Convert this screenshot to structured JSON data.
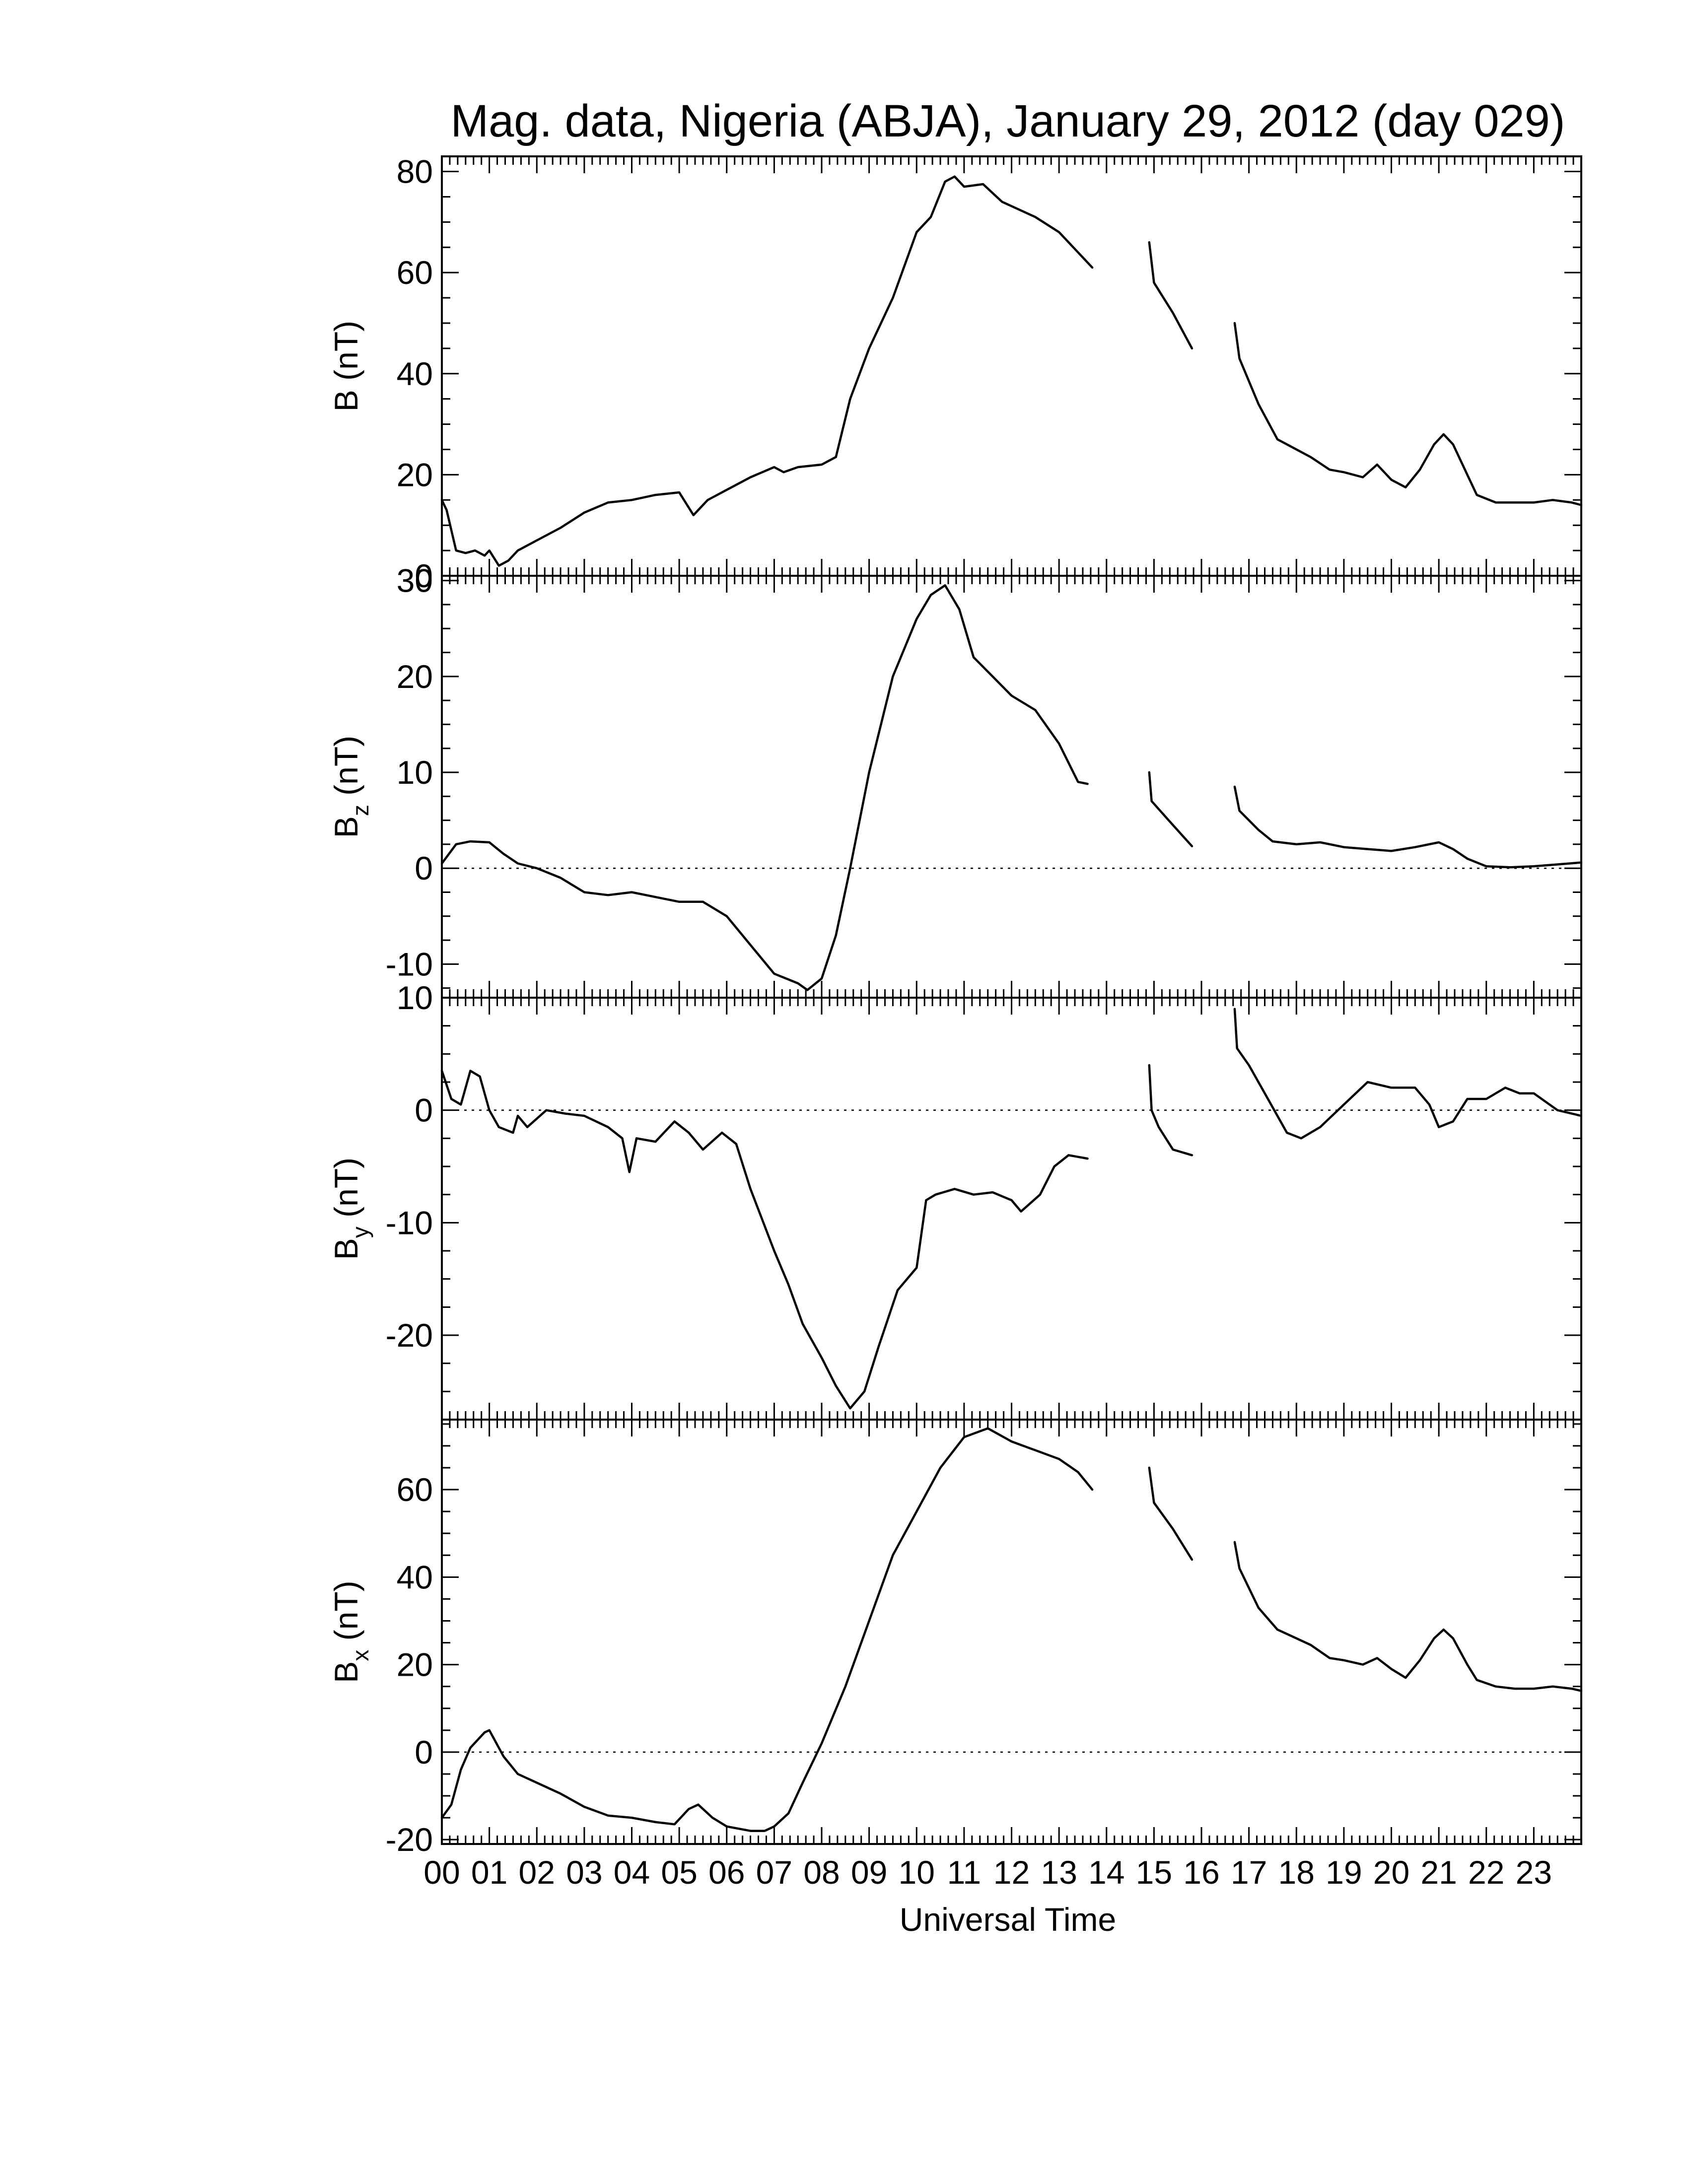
{
  "chart_data": {
    "type": "line",
    "title": "Mag. data, Nigeria (ABJA), January 29, 2012 (day 029)",
    "xlabel": "Universal Time",
    "x_tick_labels": [
      "00",
      "01",
      "02",
      "03",
      "04",
      "05",
      "06",
      "07",
      "08",
      "09",
      "10",
      "11",
      "12",
      "13",
      "14",
      "15",
      "16",
      "17",
      "18",
      "19",
      "20",
      "21",
      "22",
      "23"
    ],
    "xlim": [
      0,
      24
    ],
    "grid": false,
    "panels": [
      {
        "id": "B",
        "ylabel_main": "B",
        "ylabel_sub": "",
        "ylabel_unit": " (nT)",
        "ylim": [
          0,
          83
        ],
        "yticks": [
          0,
          20,
          40,
          60,
          80
        ],
        "ytick_labels": [
          "0",
          "20",
          "40",
          "60",
          "80"
        ],
        "zero_line": false,
        "segments": [
          [
            [
              0,
              15
            ],
            [
              0.1,
              13
            ],
            [
              0.3,
              5
            ],
            [
              0.5,
              4.5
            ],
            [
              0.7,
              5
            ],
            [
              0.9,
              4
            ],
            [
              1.0,
              5
            ],
            [
              1.2,
              2
            ],
            [
              1.4,
              3
            ],
            [
              1.6,
              5
            ],
            [
              2.0,
              7
            ],
            [
              2.5,
              9.5
            ],
            [
              3.0,
              12.5
            ],
            [
              3.5,
              14.5
            ],
            [
              4.0,
              15
            ],
            [
              4.5,
              16
            ],
            [
              5.0,
              16.5
            ],
            [
              5.3,
              12
            ],
            [
              5.6,
              15
            ],
            [
              6.0,
              17
            ],
            [
              6.5,
              19.5
            ],
            [
              7.0,
              21.5
            ],
            [
              7.2,
              20.5
            ],
            [
              7.5,
              21.5
            ],
            [
              8.0,
              22
            ],
            [
              8.3,
              23.5
            ],
            [
              8.6,
              35
            ],
            [
              9.0,
              45
            ],
            [
              9.5,
              55
            ],
            [
              10.0,
              68
            ],
            [
              10.3,
              71
            ],
            [
              10.6,
              78
            ],
            [
              10.8,
              79
            ],
            [
              11.0,
              77
            ],
            [
              11.4,
              77.5
            ],
            [
              11.8,
              74
            ],
            [
              12.5,
              71
            ],
            [
              13.0,
              68
            ],
            [
              13.4,
              64
            ],
            [
              13.7,
              61
            ]
          ],
          [
            [
              14.9,
              66
            ],
            [
              15.0,
              58
            ],
            [
              15.4,
              52
            ],
            [
              15.8,
              45
            ]
          ],
          [
            [
              16.7,
              50
            ],
            [
              16.8,
              43
            ],
            [
              17.2,
              34
            ],
            [
              17.6,
              27
            ],
            [
              18.0,
              25
            ],
            [
              18.3,
              23.5
            ],
            [
              18.7,
              21
            ],
            [
              19.0,
              20.5
            ],
            [
              19.4,
              19.5
            ],
            [
              19.7,
              22
            ],
            [
              20.0,
              19
            ],
            [
              20.3,
              17.5
            ],
            [
              20.6,
              21
            ],
            [
              20.9,
              26
            ],
            [
              21.1,
              28
            ],
            [
              21.3,
              26
            ],
            [
              21.6,
              20
            ],
            [
              21.8,
              16
            ],
            [
              22.2,
              14.5
            ],
            [
              22.6,
              14.5
            ],
            [
              23.0,
              14.5
            ],
            [
              23.4,
              15
            ],
            [
              23.8,
              14.5
            ],
            [
              24.0,
              14
            ]
          ]
        ]
      },
      {
        "id": "Bz",
        "ylabel_main": "B",
        "ylabel_sub": "z",
        "ylabel_unit": " (nT)",
        "ylim": [
          -13.5,
          30.5
        ],
        "yticks": [
          -10,
          0,
          10,
          20,
          30
        ],
        "ytick_labels": [
          "-10",
          "0",
          "10",
          "20",
          "30"
        ],
        "zero_line": true,
        "segments": [
          [
            [
              0,
              0.5
            ],
            [
              0.3,
              2.5
            ],
            [
              0.6,
              2.8
            ],
            [
              1.0,
              2.7
            ],
            [
              1.3,
              1.5
            ],
            [
              1.6,
              0.5
            ],
            [
              2.0,
              0
            ],
            [
              2.5,
              -1
            ],
            [
              3.0,
              -2.5
            ],
            [
              3.5,
              -2.8
            ],
            [
              4.0,
              -2.5
            ],
            [
              4.5,
              -3
            ],
            [
              5.0,
              -3.5
            ],
            [
              5.5,
              -3.5
            ],
            [
              6.0,
              -5
            ],
            [
              6.5,
              -8
            ],
            [
              7.0,
              -11
            ],
            [
              7.5,
              -12
            ],
            [
              7.7,
              -12.7
            ],
            [
              8.0,
              -11.5
            ],
            [
              8.3,
              -7
            ],
            [
              8.6,
              0
            ],
            [
              9.0,
              10
            ],
            [
              9.5,
              20
            ],
            [
              10.0,
              26
            ],
            [
              10.3,
              28.5
            ],
            [
              10.6,
              29.5
            ],
            [
              10.9,
              27
            ],
            [
              11.2,
              22
            ],
            [
              11.6,
              20
            ],
            [
              12.0,
              18
            ],
            [
              12.5,
              16.5
            ],
            [
              13.0,
              13
            ],
            [
              13.4,
              9
            ],
            [
              13.6,
              8.8
            ]
          ],
          [
            [
              14.9,
              10
            ],
            [
              14.95,
              7
            ],
            [
              15.4,
              4.5
            ],
            [
              15.8,
              2.3
            ]
          ],
          [
            [
              16.7,
              8.5
            ],
            [
              16.8,
              6
            ],
            [
              17.2,
              4
            ],
            [
              17.5,
              2.8
            ],
            [
              18.0,
              2.5
            ],
            [
              18.5,
              2.7
            ],
            [
              19.0,
              2.2
            ],
            [
              19.5,
              2
            ],
            [
              20.0,
              1.8
            ],
            [
              20.5,
              2.2
            ],
            [
              21.0,
              2.7
            ],
            [
              21.3,
              2
            ],
            [
              21.6,
              1
            ],
            [
              22.0,
              0.2
            ],
            [
              22.5,
              0.1
            ],
            [
              23.0,
              0.2
            ],
            [
              23.5,
              0.4
            ],
            [
              24.0,
              0.6
            ]
          ]
        ]
      },
      {
        "id": "By",
        "ylabel_main": "B",
        "ylabel_sub": "y",
        "ylabel_unit": " (nT)",
        "ylim": [
          -27.5,
          10
        ],
        "yticks": [
          -20,
          -10,
          0,
          10
        ],
        "ytick_labels": [
          "-20",
          "-10",
          "0",
          "10"
        ],
        "zero_line": true,
        "segments": [
          [
            [
              0,
              3.5
            ],
            [
              0.2,
              1
            ],
            [
              0.4,
              0.5
            ],
            [
              0.6,
              3.5
            ],
            [
              0.8,
              3
            ],
            [
              1.0,
              0
            ],
            [
              1.2,
              -1.5
            ],
            [
              1.5,
              -2
            ],
            [
              1.6,
              -0.5
            ],
            [
              1.8,
              -1.5
            ],
            [
              2.2,
              0
            ],
            [
              2.6,
              -0.3
            ],
            [
              3.0,
              -0.5
            ],
            [
              3.5,
              -1.5
            ],
            [
              3.8,
              -2.5
            ],
            [
              3.95,
              -5.5
            ],
            [
              4.1,
              -2.5
            ],
            [
              4.5,
              -2.8
            ],
            [
              4.9,
              -1
            ],
            [
              5.2,
              -2
            ],
            [
              5.5,
              -3.5
            ],
            [
              5.9,
              -2
            ],
            [
              6.2,
              -3
            ],
            [
              6.5,
              -7
            ],
            [
              7.0,
              -12.5
            ],
            [
              7.3,
              -15.5
            ],
            [
              7.6,
              -19
            ],
            [
              8.0,
              -22
            ],
            [
              8.3,
              -24.5
            ],
            [
              8.6,
              -26.5
            ],
            [
              8.9,
              -25
            ],
            [
              9.2,
              -21
            ],
            [
              9.6,
              -16
            ],
            [
              10.0,
              -14
            ],
            [
              10.2,
              -8
            ],
            [
              10.4,
              -7.5
            ],
            [
              10.8,
              -7
            ],
            [
              11.2,
              -7.5
            ],
            [
              11.6,
              -7.3
            ],
            [
              12.0,
              -8
            ],
            [
              12.2,
              -9
            ],
            [
              12.6,
              -7.5
            ],
            [
              12.9,
              -5
            ],
            [
              13.2,
              -4
            ],
            [
              13.6,
              -4.3
            ]
          ],
          [
            [
              14.9,
              4
            ],
            [
              14.95,
              0
            ],
            [
              15.1,
              -1.5
            ],
            [
              15.4,
              -3.5
            ],
            [
              15.8,
              -4
            ]
          ],
          [
            [
              16.7,
              9
            ],
            [
              16.75,
              5.5
            ],
            [
              17.0,
              4
            ],
            [
              17.4,
              1
            ],
            [
              17.8,
              -2
            ],
            [
              18.1,
              -2.5
            ],
            [
              18.5,
              -1.5
            ],
            [
              19.0,
              0.5
            ],
            [
              19.5,
              2.5
            ],
            [
              20.0,
              2
            ],
            [
              20.5,
              2
            ],
            [
              20.8,
              0.5
            ],
            [
              21.0,
              -1.5
            ],
            [
              21.3,
              -1
            ],
            [
              21.6,
              1
            ],
            [
              22.0,
              1
            ],
            [
              22.4,
              2
            ],
            [
              22.7,
              1.5
            ],
            [
              23.0,
              1.5
            ],
            [
              23.5,
              0
            ],
            [
              24.0,
              -0.5
            ]
          ]
        ]
      },
      {
        "id": "Bx",
        "ylabel_main": "B",
        "ylabel_sub": "x",
        "ylabel_unit": " (nT)",
        "ylim": [
          -21,
          76
        ],
        "yticks": [
          -20,
          0,
          20,
          40,
          60
        ],
        "ytick_labels": [
          "-20",
          "0",
          "20",
          "40",
          "60"
        ],
        "zero_line": true,
        "segments": [
          [
            [
              0,
              -15
            ],
            [
              0.2,
              -12
            ],
            [
              0.4,
              -4
            ],
            [
              0.6,
              1
            ],
            [
              0.9,
              4.5
            ],
            [
              1.0,
              5
            ],
            [
              1.3,
              -1
            ],
            [
              1.6,
              -5
            ],
            [
              2.0,
              -7
            ],
            [
              2.5,
              -9.5
            ],
            [
              3.0,
              -12.5
            ],
            [
              3.5,
              -14.5
            ],
            [
              4.0,
              -15
            ],
            [
              4.5,
              -16
            ],
            [
              4.9,
              -16.5
            ],
            [
              5.2,
              -13
            ],
            [
              5.4,
              -12
            ],
            [
              5.7,
              -15
            ],
            [
              6.0,
              -17
            ],
            [
              6.5,
              -18
            ],
            [
              6.8,
              -18
            ],
            [
              7.0,
              -17
            ],
            [
              7.3,
              -14
            ],
            [
              7.6,
              -7
            ],
            [
              8.0,
              2
            ],
            [
              8.5,
              15
            ],
            [
              9.0,
              30
            ],
            [
              9.5,
              45
            ],
            [
              10.0,
              55
            ],
            [
              10.5,
              65
            ],
            [
              11.0,
              72
            ],
            [
              11.5,
              74
            ],
            [
              12.0,
              71
            ],
            [
              12.5,
              69
            ],
            [
              13.0,
              67
            ],
            [
              13.4,
              64
            ],
            [
              13.7,
              60
            ]
          ],
          [
            [
              14.9,
              65
            ],
            [
              15.0,
              57
            ],
            [
              15.4,
              51
            ],
            [
              15.8,
              44
            ]
          ],
          [
            [
              16.7,
              48
            ],
            [
              16.8,
              42
            ],
            [
              17.2,
              33
            ],
            [
              17.6,
              28
            ],
            [
              18.0,
              26
            ],
            [
              18.3,
              24.5
            ],
            [
              18.7,
              21.5
            ],
            [
              19.0,
              21
            ],
            [
              19.4,
              20
            ],
            [
              19.7,
              21.5
            ],
            [
              20.0,
              19
            ],
            [
              20.3,
              17
            ],
            [
              20.6,
              21
            ],
            [
              20.9,
              26
            ],
            [
              21.1,
              28
            ],
            [
              21.3,
              26
            ],
            [
              21.6,
              20
            ],
            [
              21.8,
              16.5
            ],
            [
              22.2,
              15
            ],
            [
              22.6,
              14.5
            ],
            [
              23.0,
              14.5
            ],
            [
              23.4,
              15
            ],
            [
              23.8,
              14.5
            ],
            [
              24.0,
              14
            ]
          ]
        ]
      }
    ]
  }
}
